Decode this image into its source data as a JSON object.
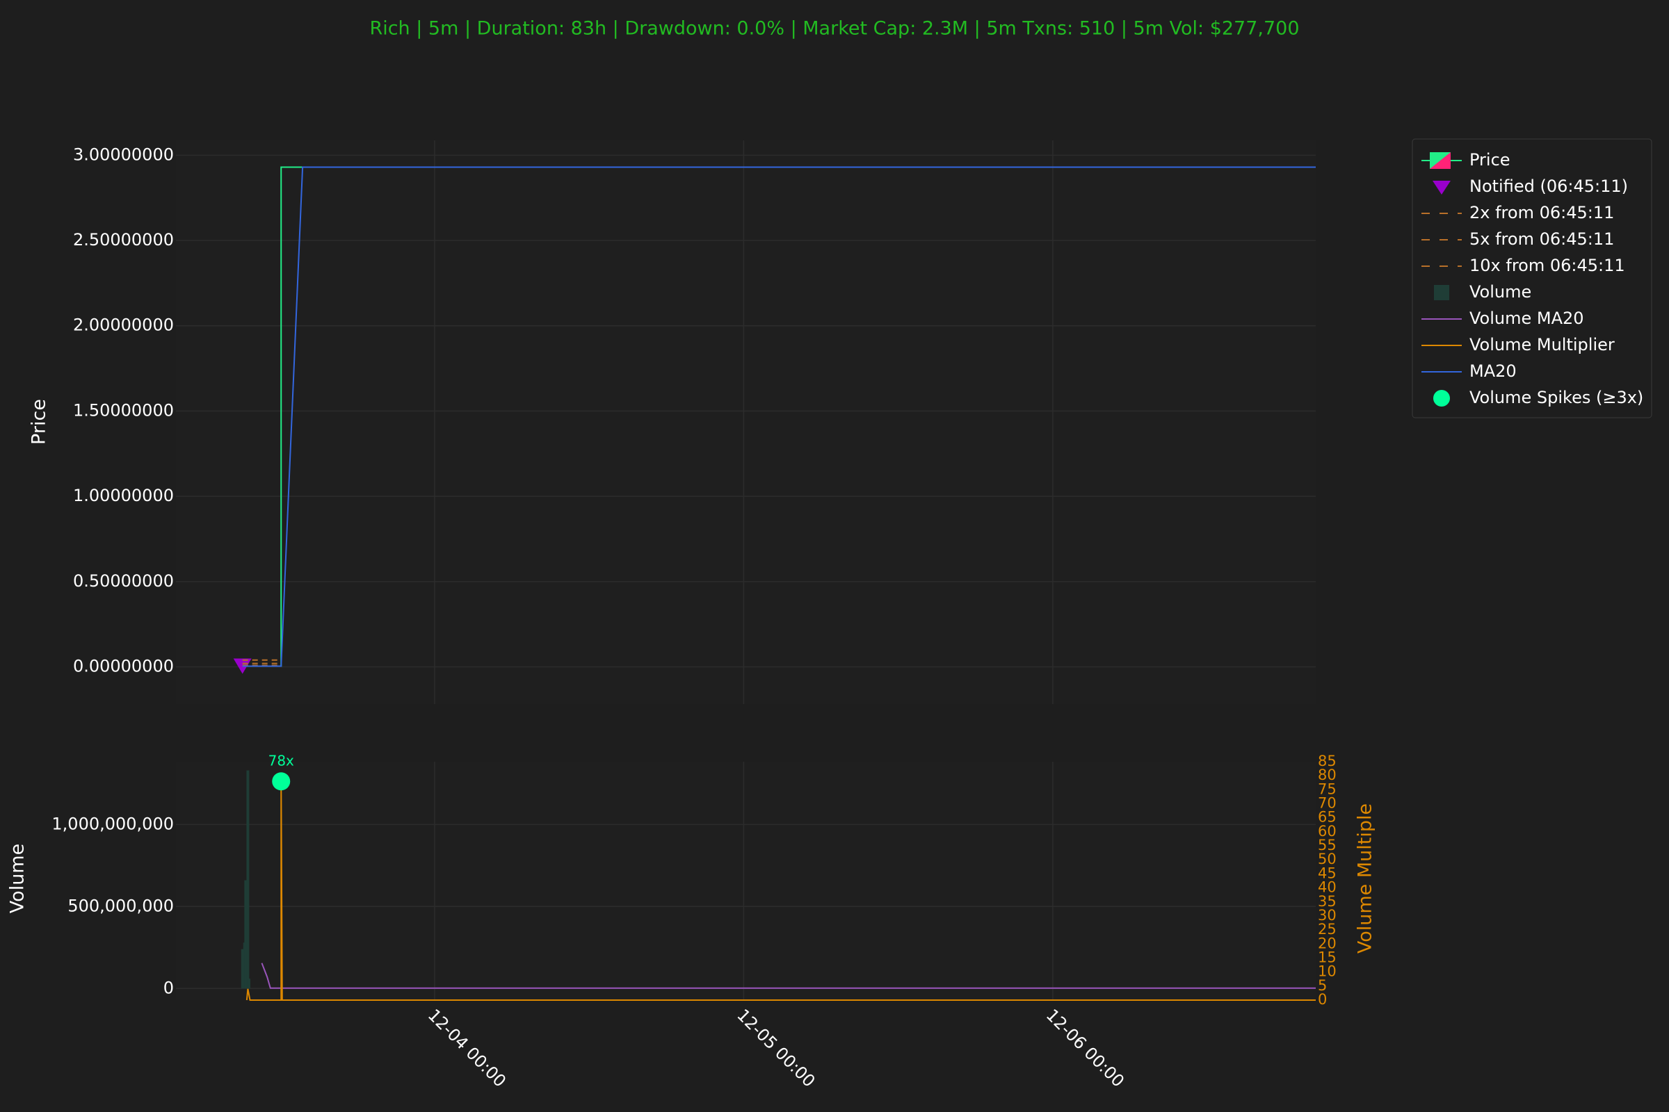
{
  "title": "Rich | 5m | Duration: 83h | Drawdown: 0.0% | Market Cap: 2.3M | 5m Txns: 510 | 5m Vol: $277,700",
  "chart_data": [
    {
      "type": "line",
      "ylabel": "Price",
      "xlim": [
        "12-03 03:55",
        "12-06 20:25"
      ],
      "ylim": [
        -0.218,
        3.087
      ],
      "yticks": [
        {
          "value": 0,
          "label": "0.00000000"
        },
        {
          "value": 0.5,
          "label": "0.50000000"
        },
        {
          "value": 1,
          "label": "1.00000000"
        },
        {
          "value": 1.5,
          "label": "1.50000000"
        },
        {
          "value": 2,
          "label": "2.00000000"
        },
        {
          "value": 2.5,
          "label": "2.50000000"
        },
        {
          "value": 3,
          "label": "3.00000000"
        }
      ],
      "grid": true,
      "series": [
        {
          "name": "Price",
          "mark": "line",
          "color": "#22ee88",
          "x": [
            "12-03 09:05",
            "12-03 12:05",
            "12-03 12:05",
            "12-06 20:25"
          ],
          "values": [
            0.004,
            0.004,
            2.93,
            2.93
          ]
        },
        {
          "name": "Notified (06:45:11)",
          "mark": "triangle",
          "color": "#9900cc",
          "x": [
            "12-03 09:05"
          ],
          "values": [
            0.004
          ]
        },
        {
          "name": "2x from 06:45:11",
          "mark": "dashed",
          "color": "#b8702a",
          "x": [
            "12-03 09:05",
            "12-03 12:05"
          ],
          "values": [
            0.008,
            0.008
          ]
        },
        {
          "name": "5x from 06:45:11",
          "mark": "dashed",
          "color": "#b8702a",
          "x": [
            "12-03 09:05",
            "12-03 12:05"
          ],
          "values": [
            0.02,
            0.02
          ]
        },
        {
          "name": "10x from 06:45:11",
          "mark": "dashed",
          "color": "#b8702a",
          "x": [
            "12-03 09:05",
            "12-03 12:05"
          ],
          "values": [
            0.04,
            0.04
          ]
        },
        {
          "name": "MA20",
          "mark": "line",
          "color": "#3366dd",
          "x": [
            "12-03 09:05",
            "12-03 12:05",
            "12-03 13:45",
            "12-06 20:25"
          ],
          "values": [
            0.004,
            0.004,
            2.93,
            2.93
          ]
        }
      ]
    },
    {
      "type": "line",
      "ylabel": "Volume",
      "y2label": "Volume Multiple",
      "xlim": [
        "12-03 03:55",
        "12-06 20:25"
      ],
      "xticks": [
        "12-04 00:00",
        "12-05 00:00",
        "12-06 00:00"
      ],
      "ylim": [
        -71000000,
        1383000000
      ],
      "yticks": [
        {
          "value": 0,
          "label": "0"
        },
        {
          "value": 500000000,
          "label": "500,000,000"
        },
        {
          "value": 1000000000,
          "label": "1,000,000,000"
        }
      ],
      "y2lim": [
        0,
        85
      ],
      "y2ticks": [
        0,
        5,
        10,
        15,
        20,
        25,
        30,
        35,
        40,
        45,
        50,
        55,
        60,
        65,
        70,
        75,
        80,
        85
      ],
      "grid": true,
      "series": [
        {
          "name": "Volume",
          "mark": "bar",
          "color": "#1f3d36",
          "x": [
            "12-03 09:05",
            "12-03 09:15",
            "12-03 09:20",
            "12-03 09:30",
            "12-03 09:35"
          ],
          "values": [
            240000000,
            280000000,
            660000000,
            1330000000,
            60000000
          ]
        },
        {
          "name": "Volume MA20",
          "mark": "line",
          "color": "#9955bb",
          "x": [
            "12-03 10:35",
            "12-03 11:00",
            "12-03 11:15",
            "12-06 20:25"
          ],
          "values": [
            155000000,
            70000000,
            2000000,
            2000000
          ]
        },
        {
          "name": "Volume Multiplier",
          "mark": "line",
          "axis": "y2",
          "color": "#dd8800",
          "x": [
            "12-03 09:25",
            "12-03 09:30",
            "12-03 09:40",
            "12-03 12:05",
            "12-03 12:05",
            "12-03 12:10",
            "12-06 20:25"
          ],
          "values": [
            0,
            4,
            0,
            0,
            78,
            0,
            0
          ]
        },
        {
          "name": "Volume Spikes (≥3x)",
          "mark": "circle",
          "axis": "y2",
          "color": "#00ff99",
          "x": [
            "12-03 12:05"
          ],
          "values": [
            78
          ],
          "value_labels": [
            "78x"
          ]
        }
      ]
    }
  ]
}
